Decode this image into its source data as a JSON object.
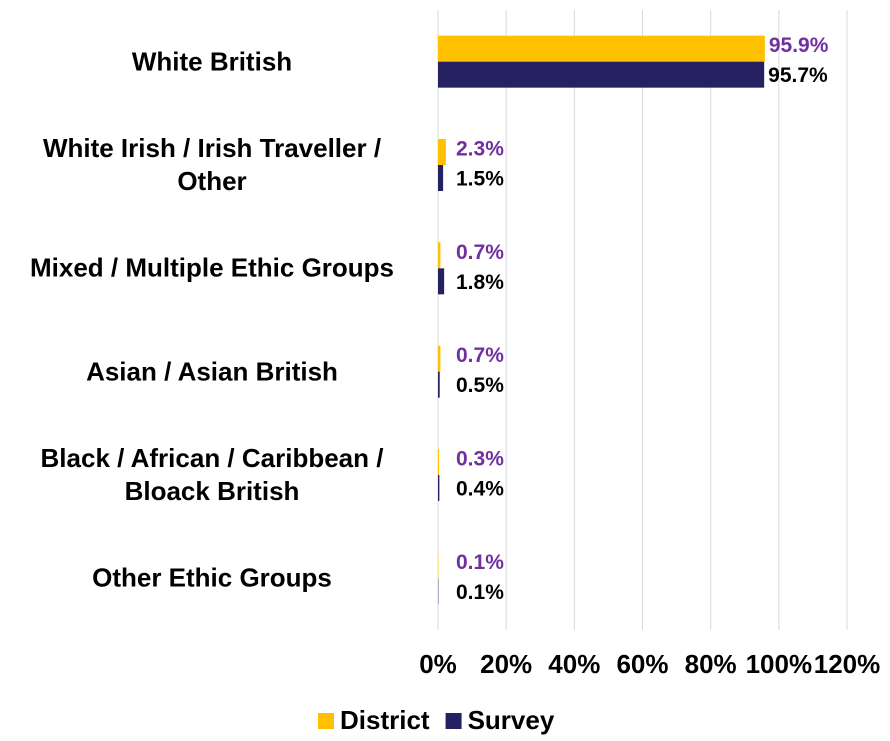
{
  "chart_data": {
    "type": "hbar",
    "categories": [
      "White British",
      "White Irish / Irish Traveller / Other",
      "Mixed / Multiple Ethic Groups",
      "Asian / Asian British",
      "Black / African / Caribbean / Bloack British",
      "Other Ethic Groups"
    ],
    "series": [
      {
        "name": "District",
        "color": "#ffc000",
        "label_color": "#7030a0",
        "values": [
          95.9,
          2.3,
          0.7,
          0.7,
          0.3,
          0.1
        ],
        "value_labels": [
          "95.9%",
          "2.3%",
          "0.7%",
          "0.7%",
          "0.3%",
          "0.1%"
        ]
      },
      {
        "name": "Survey",
        "color": "#262262",
        "label_color": "#000000",
        "values": [
          95.7,
          1.5,
          1.8,
          0.5,
          0.4,
          0.1
        ],
        "value_labels": [
          "95.7%",
          "1.5%",
          "1.8%",
          "0.5%",
          "0.4%",
          "0.1%"
        ]
      }
    ],
    "xlim": [
      0,
      120
    ],
    "xticks": [
      {
        "value": 0,
        "label": "0%"
      },
      {
        "value": 20,
        "label": "20%"
      },
      {
        "value": 40,
        "label": "40%"
      },
      {
        "value": 60,
        "label": "60%"
      },
      {
        "value": 80,
        "label": "80%"
      },
      {
        "value": 100,
        "label": "100%"
      },
      {
        "value": 120,
        "label": "120%"
      }
    ],
    "grid": true,
    "legend": "bottom"
  }
}
